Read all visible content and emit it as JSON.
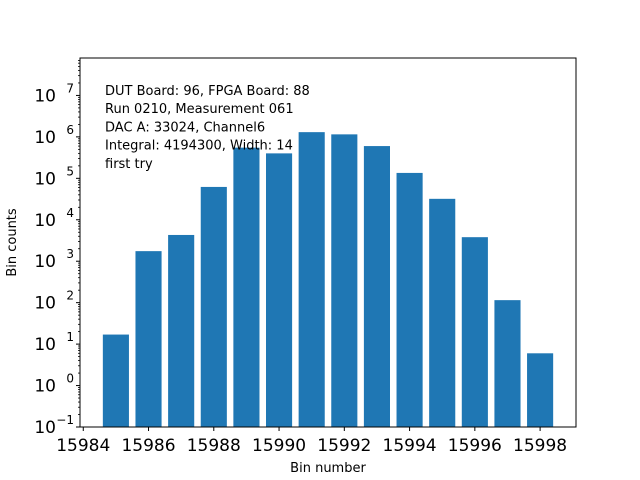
{
  "chart_data": {
    "type": "bar",
    "x": [
      15985,
      15986,
      15987,
      15988,
      15989,
      15990,
      15991,
      15992,
      15993,
      15994,
      15995,
      15996,
      15997,
      15998
    ],
    "values": [
      17,
      1750,
      4300,
      62000,
      550000,
      400000,
      1300000,
      1150000,
      600000,
      135000,
      32000,
      3800,
      115,
      6
    ],
    "xlabel": "Bin number",
    "ylabel": "Bin counts",
    "yscale": "log",
    "xlim": [
      15983.9,
      15999.1
    ],
    "ylim": [
      0.1,
      80000000
    ],
    "x_ticks": [
      "15984",
      "15986",
      "15988",
      "15990",
      "15992",
      "15994",
      "15996",
      "15998"
    ],
    "y_ticks": [
      {
        "base": "10",
        "exp": "−1"
      },
      {
        "base": "10",
        "exp": "0"
      },
      {
        "base": "10",
        "exp": "1"
      },
      {
        "base": "10",
        "exp": "2"
      },
      {
        "base": "10",
        "exp": "3"
      },
      {
        "base": "10",
        "exp": "4"
      },
      {
        "base": "10",
        "exp": "5"
      },
      {
        "base": "10",
        "exp": "6"
      },
      {
        "base": "10",
        "exp": "7"
      }
    ],
    "bar_color": "#1f77b4",
    "grid": false,
    "annotation_lines": [
      "DUT Board: 96, FPGA Board: 88",
      "Run 0210, Measurement 061",
      "DAC A: 33024, Channel6",
      "Integral: 4194300, Width: 14",
      "first try"
    ]
  }
}
